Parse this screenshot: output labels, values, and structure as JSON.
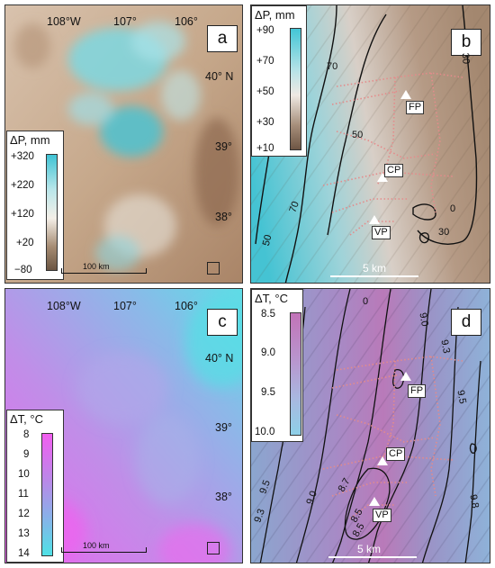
{
  "panels": {
    "a": {
      "letter": "a",
      "lon_labels": [
        "108°W",
        "107°",
        "106°"
      ],
      "lat_labels": [
        "40° N",
        "39°",
        "38°"
      ],
      "legend_title": "ΔP, mm",
      "legend_ticks": [
        "+320",
        "+220",
        "+120",
        "+20",
        "−80"
      ],
      "scale_label": "100 km",
      "colors": {
        "high": "#3fc3d4",
        "mid": "#f4efe8",
        "low": "#6b5542",
        "terrain": "#c9a98d"
      }
    },
    "b": {
      "letter": "b",
      "legend_title": "ΔP, mm",
      "legend_ticks": [
        "+90",
        "+70",
        "+50",
        "+30",
        "+10"
      ],
      "contours": [
        "70",
        "50",
        "70",
        "50",
        "30",
        "30",
        "0"
      ],
      "sites": [
        "FP",
        "CP",
        "VP"
      ],
      "scale_label": "5 km",
      "colors": {
        "high": "#43c6d6",
        "mid": "#efe9e3",
        "low": "#6e5644"
      }
    },
    "c": {
      "letter": "c",
      "lon_labels": [
        "108°W",
        "107°",
        "106°"
      ],
      "lat_labels": [
        "40° N",
        "39°",
        "38°"
      ],
      "legend_title": "ΔT, °C",
      "legend_ticks": [
        "8",
        "9",
        "10",
        "11",
        "12",
        "13",
        "14"
      ],
      "scale_label": "100 km",
      "colors": {
        "low": "#f25ef0",
        "high": "#4fe1e6",
        "base": "#b28ae6"
      }
    },
    "d": {
      "letter": "d",
      "legend_title": "ΔT, °C",
      "legend_ticks": [
        "8.5",
        "9.0",
        "9.5",
        "10.0"
      ],
      "contours": [
        "9.0",
        "9.3",
        "9.5",
        "9.8",
        "9.5",
        "9.3",
        "9.0",
        "8.7",
        "8.5",
        "8.5",
        "0"
      ],
      "sites": [
        "FP",
        "CP",
        "VP"
      ],
      "scale_label": "5 km",
      "colors": {
        "low": "#c273b8",
        "high": "#8ed0e8"
      }
    }
  }
}
